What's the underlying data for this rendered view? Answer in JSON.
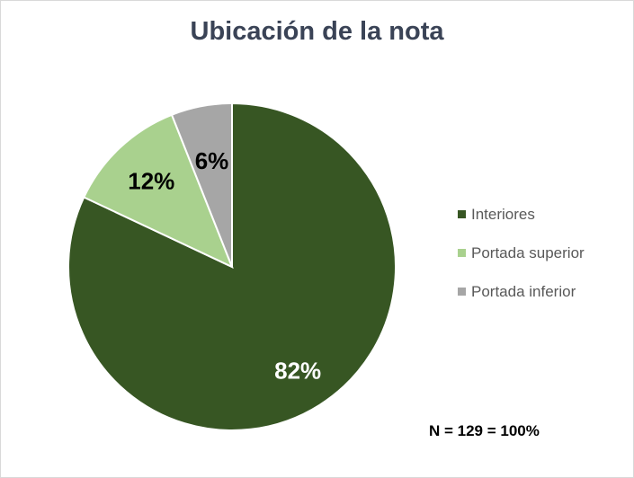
{
  "chart_data": {
    "type": "pie",
    "title": "Ubicación de la nota",
    "categories": [
      "Interiores",
      "Portada superior",
      "Portada inferior"
    ],
    "values": [
      82,
      12,
      6
    ],
    "labels": [
      "82%",
      "12%",
      "6%"
    ],
    "colors": [
      "#375623",
      "#a9d18e",
      "#a6a6a6"
    ],
    "label_colors": [
      "#ffffff",
      "#000000",
      "#000000"
    ],
    "legend_position": "right",
    "annotation": "N = 129 = 100%"
  }
}
